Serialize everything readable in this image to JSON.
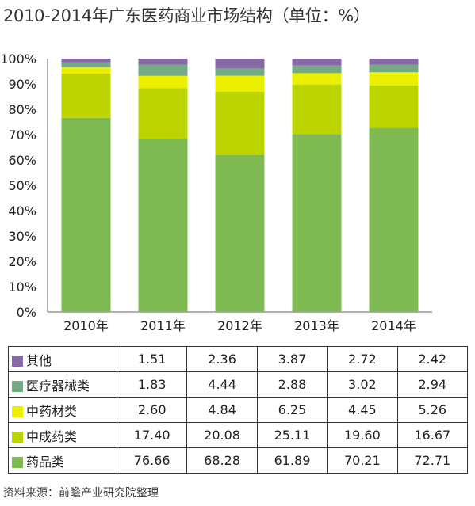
{
  "title": "2010-2014年广东医药商业市场结构（单位：%）",
  "source": "资料来源：前瞻产业研究院整理",
  "chart_data": {
    "type": "bar",
    "stacked": true,
    "title": "2010-2014年广东医药商业市场结构（单位：%）",
    "categories": [
      "2010年",
      "2011年",
      "2012年",
      "2013年",
      "2014年"
    ],
    "y_ticks": [
      "0%",
      "10%",
      "20%",
      "30%",
      "40%",
      "50%",
      "60%",
      "70%",
      "80%",
      "90%",
      "100%"
    ],
    "ylim": [
      0,
      100
    ],
    "series": [
      {
        "name": "药品类",
        "color": "#7fba53",
        "values": [
          76.66,
          68.28,
          61.89,
          70.21,
          72.71
        ],
        "labels": [
          "76.66",
          "68.28",
          "61.89",
          "70.21",
          "72.71"
        ]
      },
      {
        "name": "中成药类",
        "color": "#bcd500",
        "values": [
          17.4,
          20.08,
          25.11,
          19.6,
          16.67
        ],
        "labels": [
          "17.40",
          "20.08",
          "25.11",
          "19.60",
          "16.67"
        ]
      },
      {
        "name": "中药材类",
        "color": "#eaf000",
        "values": [
          2.6,
          4.84,
          6.25,
          4.45,
          5.26
        ],
        "labels": [
          "2.60",
          "4.84",
          "6.25",
          "4.45",
          "5.26"
        ]
      },
      {
        "name": "医疗器械类",
        "color": "#73aa84",
        "values": [
          1.83,
          4.44,
          2.88,
          3.02,
          2.94
        ],
        "labels": [
          "1.83",
          "4.44",
          "2.88",
          "3.02",
          "2.94"
        ]
      },
      {
        "name": "其他",
        "color": "#8769a8",
        "values": [
          1.51,
          2.36,
          3.87,
          2.72,
          2.42
        ],
        "labels": [
          "1.51",
          "2.36",
          "3.87",
          "2.72",
          "2.42"
        ]
      }
    ],
    "table_order": [
      "其他",
      "医疗器械类",
      "中药材类",
      "中成药类",
      "药品类"
    ],
    "grid": false,
    "legend": "table-below"
  }
}
